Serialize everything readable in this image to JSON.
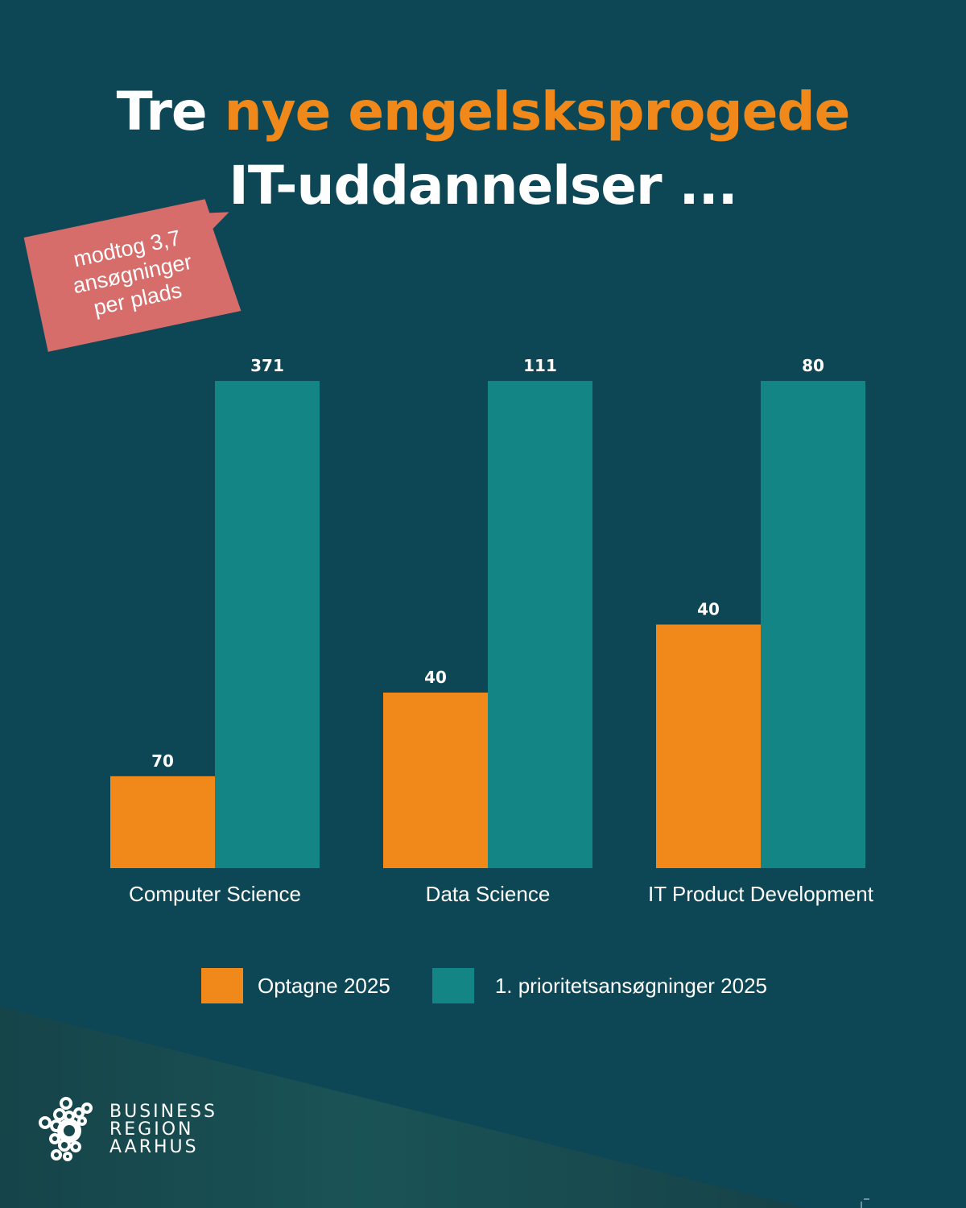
{
  "colors": {
    "background": "#0d4654",
    "band": "#184f54",
    "orange": "#f0891a",
    "teal": "#138584",
    "callout": "#d76d6b",
    "text": "#ffffff"
  },
  "title": {
    "line1_prefix": "Tre ",
    "line1_accent": "nye engelsksprogede",
    "line2": "IT-uddannelser ..."
  },
  "callout": {
    "lines": [
      "modtog 3,7",
      "ansøgninger",
      "per plads"
    ]
  },
  "legend": {
    "items": [
      {
        "label": "Optagne 2025",
        "color": "#f0891a"
      },
      {
        "label": "1.  prioritetsansøgninger 2025",
        "color": "#138584"
      }
    ]
  },
  "logo": {
    "lines": [
      "BUSINESS",
      "REGION",
      "AARHUS"
    ]
  },
  "chart_data": {
    "type": "bar",
    "title": "Tre nye engelsksprogede IT-uddannelser ...",
    "xlabel": "",
    "ylabel": "",
    "scaling": "each category normalized to its own 1. prioritetsansøgninger value",
    "categories": [
      "Computer Science",
      "Data Science",
      "IT Product Development"
    ],
    "series": [
      {
        "name": "Optagne 2025",
        "color": "#f0891a",
        "values": [
          70,
          40,
          40
        ]
      },
      {
        "name": "1.  prioritetsansøgninger 2025",
        "color": "#138584",
        "values": [
          371,
          111,
          80
        ]
      }
    ],
    "grid": false,
    "legend": "bottom",
    "annotation": "modtog 3,7 ansøgninger per plads"
  }
}
